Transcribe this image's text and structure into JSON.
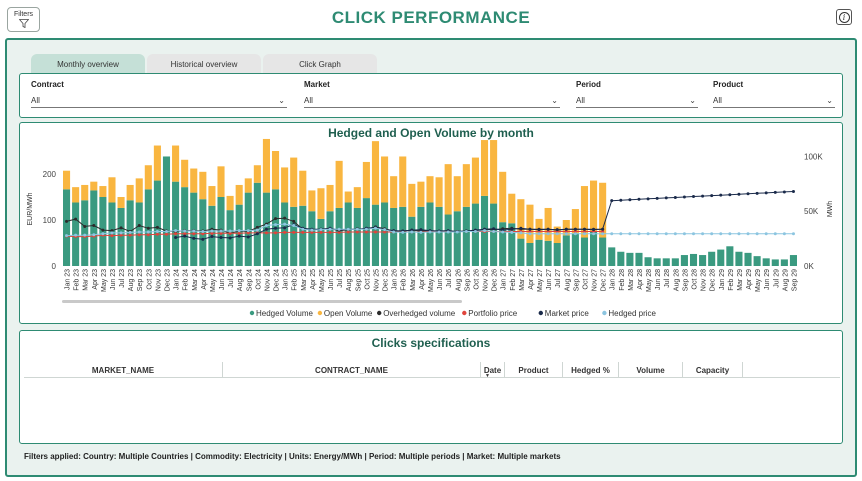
{
  "header": {
    "filters_label": "Filters",
    "title": "CLICK PERFORMANCE"
  },
  "tabs": [
    {
      "label": "Monthly overview",
      "active": true
    },
    {
      "label": "Historical overview",
      "active": false
    },
    {
      "label": "Click Graph",
      "active": false
    }
  ],
  "slicers": [
    {
      "label": "Contract",
      "value": "All"
    },
    {
      "label": "Market",
      "value": "All"
    },
    {
      "label": "Period",
      "value": "All"
    },
    {
      "label": "Product",
      "value": "All"
    }
  ],
  "chart": {
    "title": "Hedged and Open Volume by month"
  },
  "chart_data": {
    "type": "bar",
    "title": "Hedged and Open Volume by month",
    "ylabel_left": "EUR/MWh",
    "ylabel_right": "MWh",
    "yticks_left": [
      "0",
      "100",
      "200"
    ],
    "yticks_right": [
      "0K",
      "50K",
      "100K"
    ],
    "ylim_left": [
      0,
      250
    ],
    "ylim_right": [
      0,
      105000
    ],
    "stacked": true,
    "legend_position": "bottom",
    "categories": [
      "Jan 23",
      "Feb 23",
      "Mar 23",
      "Apr 23",
      "May 23",
      "Jun 23",
      "Jul 23",
      "Aug 23",
      "Sep 23",
      "Oct 23",
      "Nov 23",
      "Dec 23",
      "Jan 24",
      "Feb 24",
      "Mar 24",
      "Apr 24",
      "May 24",
      "Jun 24",
      "Jul 24",
      "Aug 24",
      "Sep 24",
      "Oct 24",
      "Nov 24",
      "Dec 24",
      "Jan 25",
      "Feb 25",
      "Mar 25",
      "Apr 25",
      "May 25",
      "Jun 25",
      "Jul 25",
      "Aug 25",
      "Sep 25",
      "Oct 25",
      "Nov 25",
      "Dec 25",
      "Jan 26",
      "Feb 26",
      "Mar 26",
      "Apr 26",
      "May 26",
      "Jun 26",
      "Jul 26",
      "Aug 26",
      "Sep 26",
      "Oct 26",
      "Nov 26",
      "Dec 26",
      "Jan 27",
      "Feb 27",
      "Mar 27",
      "Apr 27",
      "May 27",
      "Jun 27",
      "Jul 27",
      "Aug 27",
      "Sep 27",
      "Oct 27",
      "Nov 27",
      "Dec 27",
      "Jan 28",
      "Feb 28",
      "Mar 28",
      "Apr 28",
      "May 28",
      "Jun 28",
      "Jul 28",
      "Aug 28",
      "Sep 28",
      "Oct 28",
      "Nov 28",
      "Dec 28",
      "Jan 29",
      "Feb 29",
      "Mar 29",
      "Apr 29",
      "May 29",
      "Jun 29",
      "Jul 29",
      "Aug 29",
      "Sep 29"
    ],
    "series": [
      {
        "name": "Hedged Volume",
        "axis": "right",
        "kind": "bar",
        "color": "#3a9a80",
        "values": [
          70000,
          58000,
          60000,
          69000,
          63000,
          58000,
          53000,
          60000,
          58000,
          70000,
          78000,
          100000,
          77000,
          72000,
          67000,
          61000,
          55000,
          63000,
          51000,
          56000,
          67000,
          76000,
          67000,
          70000,
          58000,
          54000,
          55000,
          50000,
          43000,
          50000,
          53000,
          58000,
          53000,
          62000,
          56000,
          58000,
          53000,
          54000,
          45000,
          54000,
          58000,
          54000,
          47000,
          50000,
          54000,
          57000,
          64000,
          57000,
          40000,
          39000,
          25000,
          21000,
          24000,
          23000,
          21000,
          28000,
          30000,
          26000,
          32000,
          26000,
          17000,
          13000,
          12000,
          12000,
          8000,
          7000,
          7000,
          7000,
          10000,
          11000,
          10000,
          13000,
          15000,
          18000,
          13000,
          12000,
          9000,
          7000,
          6000,
          6000,
          10000
        ]
      },
      {
        "name": "Open Volume",
        "axis": "right",
        "kind": "bar",
        "color": "#f9b640",
        "values": [
          17000,
          14000,
          14000,
          8000,
          10000,
          23000,
          10000,
          14000,
          22000,
          22000,
          32000,
          0,
          33000,
          25000,
          22000,
          25000,
          18000,
          28000,
          13000,
          18000,
          13000,
          16000,
          49000,
          35000,
          32000,
          45000,
          32000,
          19000,
          28000,
          24000,
          43000,
          10000,
          19000,
          33000,
          58000,
          42000,
          29000,
          46000,
          30000,
          23000,
          24000,
          27000,
          46000,
          32000,
          39000,
          42000,
          51000,
          58000,
          46000,
          27000,
          36000,
          35000,
          19000,
          30000,
          15000,
          14000,
          22000,
          47000,
          46000,
          50000,
          0,
          0,
          0,
          0,
          0,
          0,
          0,
          0,
          0,
          0,
          0,
          0,
          0,
          0,
          0,
          0,
          0,
          0,
          0,
          0,
          0
        ]
      },
      {
        "name": "Overhedged volume",
        "axis": "left",
        "kind": "line",
        "color": "#2b2b2b",
        "values": [
          97,
          102,
          86,
          88,
          78,
          77,
          83,
          75,
          88,
          82,
          84,
          76,
          75,
          77,
          77,
          76,
          80,
          78,
          71,
          76,
          75,
          84,
          91,
          103,
          104,
          97,
          80,
          79,
          80,
          81,
          77,
          79,
          81,
          80,
          85,
          81,
          76,
          76,
          78,
          76,
          76,
          75,
          75,
          75,
          76,
          76,
          80,
          79,
          81,
          82,
          80,
          80,
          80,
          80,
          78,
          80,
          80,
          80,
          80,
          80,
          null,
          null,
          null,
          null,
          null,
          null,
          null,
          null,
          null,
          null,
          null,
          null,
          null,
          null,
          null,
          null,
          null,
          null,
          null,
          null,
          null
        ]
      },
      {
        "name": "Portfolio price",
        "axis": "left",
        "kind": "line",
        "color": "#e0443c",
        "values": [
          65,
          64,
          64,
          65,
          67,
          66,
          67,
          67,
          68,
          68,
          69,
          69,
          70,
          70,
          70,
          70,
          71,
          71,
          71,
          71,
          72,
          72,
          72,
          72,
          73,
          73,
          73,
          73,
          73,
          73,
          73,
          74,
          74,
          74,
          74,
          74,
          74,
          74,
          74,
          74,
          75,
          75,
          75,
          75,
          75,
          75,
          75,
          75,
          75,
          75,
          75,
          75,
          75,
          75,
          75,
          75,
          75,
          75,
          75,
          75,
          null,
          null,
          null,
          null,
          null,
          null,
          null,
          null,
          null,
          null,
          null,
          null,
          null,
          null,
          null,
          null,
          null,
          null,
          null,
          null,
          null
        ]
      },
      {
        "name": "Market price",
        "axis": "left",
        "kind": "line",
        "color": "#1a2a4a",
        "values": [
          null,
          null,
          null,
          null,
          null,
          null,
          null,
          null,
          null,
          null,
          null,
          null,
          62,
          65,
          60,
          58,
          64,
          62,
          61,
          65,
          63,
          70,
          80,
          82,
          83,
          90,
          82,
          80,
          80,
          82,
          78,
          80,
          80,
          82,
          84,
          79,
          77,
          76,
          78,
          79,
          77,
          76,
          77,
          75,
          76,
          78,
          80,
          81,
          78,
          80,
          82,
          80,
          79,
          80,
          79,
          80,
          80,
          80,
          79,
          80,
          142,
          143,
          144,
          145,
          146,
          147,
          148,
          149,
          150,
          151,
          152,
          153,
          154,
          155,
          156,
          157,
          158,
          159,
          160,
          161,
          162
        ]
      },
      {
        "name": "Hedged price",
        "axis": "left",
        "kind": "line",
        "color": "#8cc5e0",
        "values": [
          66,
          67,
          67,
          68,
          70,
          72,
          72,
          73,
          74,
          74,
          75,
          75,
          77,
          76,
          76,
          75,
          76,
          76,
          76,
          77,
          77,
          78,
          88,
          90,
          91,
          88,
          80,
          78,
          79,
          80,
          80,
          80,
          80,
          80,
          82,
          79,
          74,
          73,
          74,
          73,
          74,
          74,
          74,
          74,
          75,
          75,
          77,
          75,
          74,
          73,
          72,
          70,
          70,
          70,
          70,
          70,
          70,
          70,
          70,
          70,
          70,
          70,
          70,
          70,
          70,
          70,
          70,
          70,
          70,
          70,
          70,
          70,
          70,
          70,
          70,
          70,
          70,
          70,
          70,
          70,
          70
        ]
      }
    ]
  },
  "table": {
    "title": "Clicks specifications",
    "columns": [
      "MARKET_NAME",
      "CONTRACT_NAME",
      "Date",
      "Product",
      "Hedged %",
      "Volume",
      "Capacity"
    ],
    "rows": []
  },
  "footer": {
    "filters_applied": "Filters applied: Country: Multiple Countries | Commodity: Electricity | Units: Energy/MWh | Period: Multiple periods | Market: Multiple markets"
  }
}
